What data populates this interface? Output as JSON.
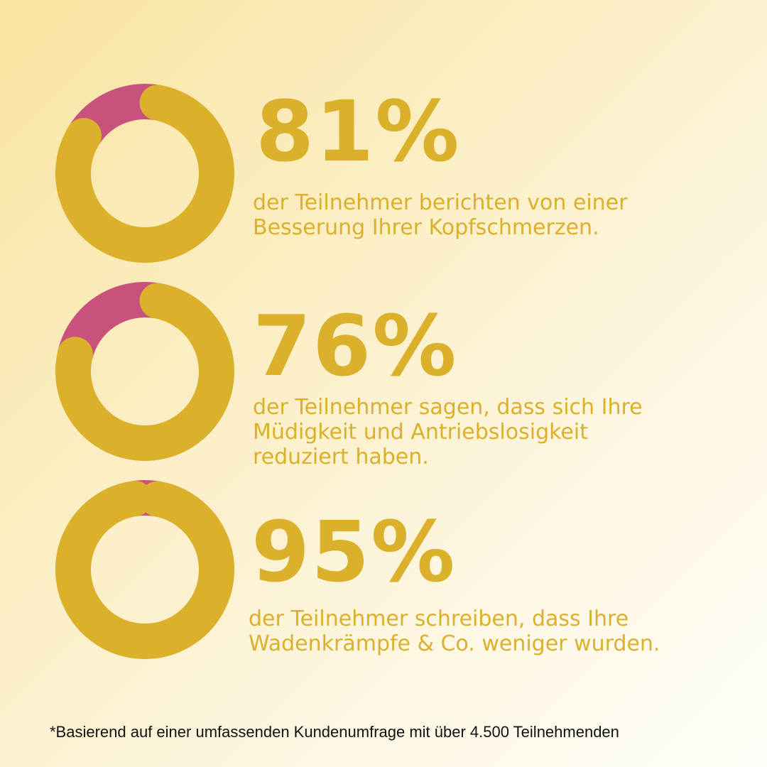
{
  "colors": {
    "primary": "#dbb12c",
    "accent": "#c9527c",
    "text_dark": "#111111"
  },
  "chart_data": [
    {
      "type": "pie",
      "variant": "donut",
      "values": [
        81,
        19
      ],
      "colors": [
        "#dbb12c",
        "#c9527c"
      ],
      "label": "81%",
      "description": "der Teilnehmer berichten von einer\nBesserung Ihrer Kopfschmerzen."
    },
    {
      "type": "pie",
      "variant": "donut",
      "values": [
        76,
        24
      ],
      "colors": [
        "#dbb12c",
        "#c9527c"
      ],
      "label": "76%",
      "description": "der Teilnehmer sagen, dass sich Ihre\nMüdigkeit und Antriebslosigkeit\nreduziert haben."
    },
    {
      "type": "pie",
      "variant": "donut",
      "values": [
        95,
        5
      ],
      "colors": [
        "#dbb12c",
        "#c9527c"
      ],
      "label": "95%",
      "description": "der Teilnehmer schreiben, dass Ihre\nWadenkrämpfe & Co. weniger wurden."
    }
  ],
  "footnote": "*Basierend auf einer umfassenden Kundenumfrage mit über 4.500 Teilnehmenden"
}
